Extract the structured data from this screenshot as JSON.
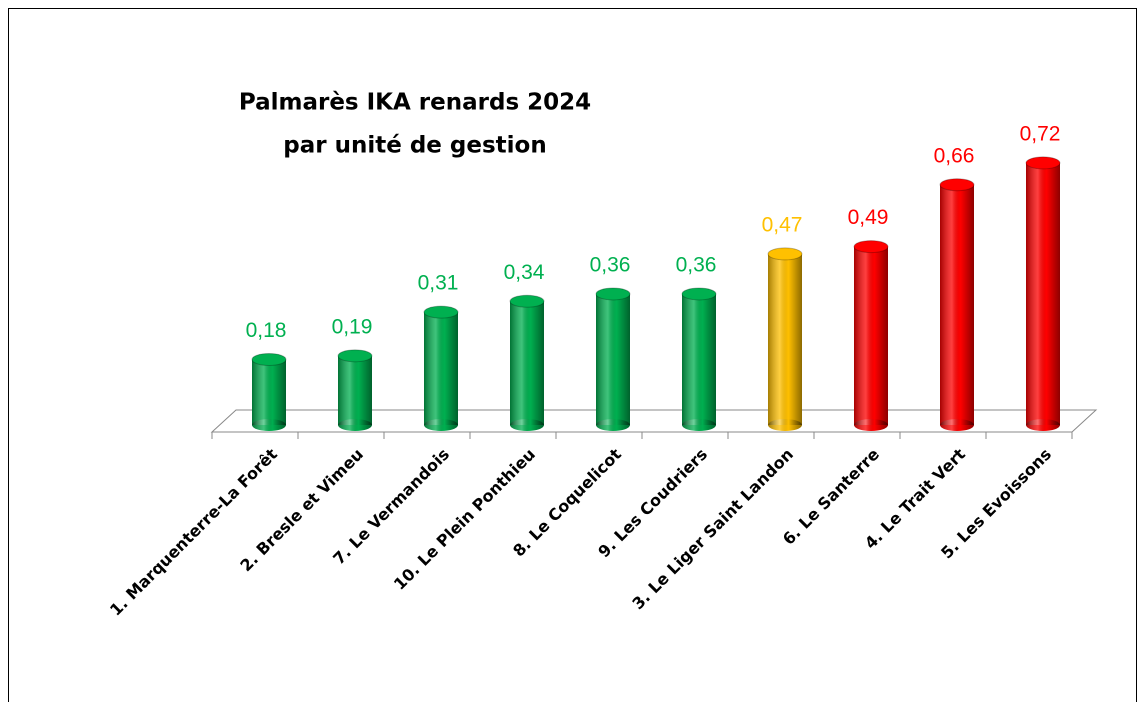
{
  "chart_data": {
    "type": "bar",
    "title": [
      "Palmarès IKA renards 2024",
      "par unité de gestion"
    ],
    "categories": [
      "1. Marquenterre-La Forêt",
      "2. Bresle et Vimeu",
      "7. Le Vermandois",
      "10. Le Plein Ponthieu",
      "8. Le Coquelicot",
      "9. Les Coudriers",
      "3. Le Liger Saint Landon",
      "6. Le Santerre",
      "4. Le Trait Vert",
      "5. Les Evoissons"
    ],
    "values": [
      0.18,
      0.19,
      0.31,
      0.34,
      0.36,
      0.36,
      0.47,
      0.49,
      0.66,
      0.72
    ],
    "value_labels": [
      "0,18",
      "0,19",
      "0,31",
      "0,34",
      "0,36",
      "0,36",
      "0,47",
      "0,49",
      "0,66",
      "0,72"
    ],
    "colors": [
      "#00b050",
      "#00b050",
      "#00b050",
      "#00b050",
      "#00b050",
      "#00b050",
      "#ffc000",
      "#ff0000",
      "#ff0000",
      "#ff0000"
    ]
  }
}
